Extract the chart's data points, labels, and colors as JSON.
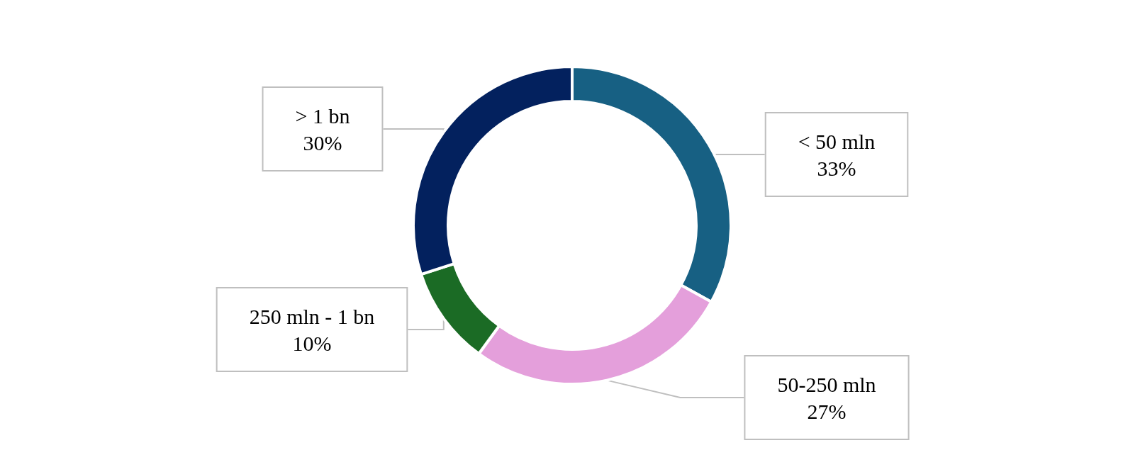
{
  "chart_data": {
    "type": "donut",
    "categories": [
      "< 50 mln",
      "50-250 mln",
      "250 mln - 1 bn",
      "> 1 bn"
    ],
    "values": [
      33,
      27,
      10,
      30
    ],
    "colors": [
      "#176083",
      "#e49fdb",
      "#1b6b25",
      "#03215e"
    ],
    "value_labels": [
      "33%",
      "27%",
      "10%",
      "30%"
    ],
    "legend": false
  }
}
